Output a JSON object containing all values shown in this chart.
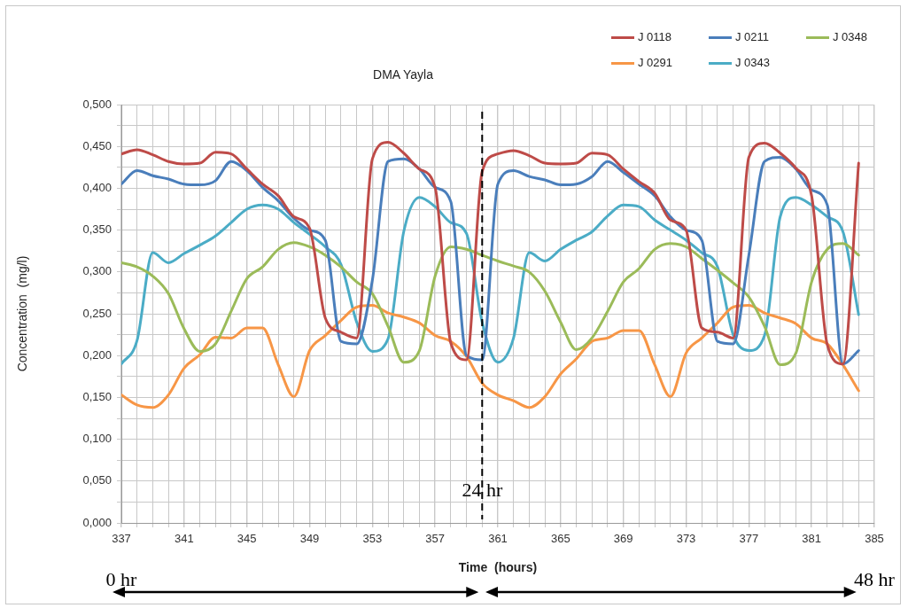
{
  "chart_data": {
    "type": "line",
    "title": "DMA Yayla",
    "xlabel": "Time  (hours)",
    "ylabel": "Concentration  (mg/l)",
    "x": [
      337,
      338,
      339,
      340,
      341,
      342,
      343,
      344,
      345,
      346,
      347,
      348,
      349,
      350,
      351,
      352,
      353,
      354,
      355,
      356,
      357,
      358,
      359,
      360,
      361,
      362,
      363,
      364,
      365,
      366,
      367,
      368,
      369,
      370,
      371,
      372,
      373,
      374,
      375,
      376,
      377,
      378,
      379,
      380,
      381,
      382,
      383,
      384
    ],
    "series": [
      {
        "name": "J 0118",
        "color": "#be4b48",
        "values": [
          0.441,
          0.446,
          0.44,
          0.432,
          0.429,
          0.43,
          0.443,
          0.441,
          0.423,
          0.405,
          0.391,
          0.366,
          0.352,
          0.245,
          0.228,
          0.221,
          0.435,
          0.455,
          0.442,
          0.423,
          0.401,
          0.215,
          0.195,
          0.42,
          0.441,
          0.445,
          0.439,
          0.43,
          0.429,
          0.43,
          0.442,
          0.44,
          0.423,
          0.408,
          0.394,
          0.362,
          0.35,
          0.233,
          0.228,
          0.221,
          0.437,
          0.454,
          0.442,
          0.424,
          0.391,
          0.213,
          0.19,
          0.43
        ]
      },
      {
        "name": "J 0211",
        "color": "#4a7ebb",
        "values": [
          0.405,
          0.421,
          0.415,
          0.411,
          0.405,
          0.404,
          0.409,
          0.432,
          0.421,
          0.401,
          0.385,
          0.364,
          0.35,
          0.338,
          0.217,
          0.214,
          0.29,
          0.432,
          0.435,
          0.423,
          0.401,
          0.384,
          0.2,
          0.195,
          0.405,
          0.421,
          0.414,
          0.41,
          0.404,
          0.405,
          0.414,
          0.432,
          0.419,
          0.405,
          0.391,
          0.366,
          0.35,
          0.338,
          0.217,
          0.214,
          0.32,
          0.432,
          0.437,
          0.423,
          0.398,
          0.38,
          0.19,
          0.206
        ]
      },
      {
        "name": "J 0348",
        "color": "#9bbb59",
        "values": [
          0.311,
          0.306,
          0.295,
          0.274,
          0.232,
          0.205,
          0.214,
          0.253,
          0.292,
          0.306,
          0.327,
          0.335,
          0.33,
          0.32,
          0.306,
          0.288,
          0.274,
          0.235,
          0.192,
          0.206,
          0.295,
          0.33,
          0.327,
          0.32,
          0.313,
          0.307,
          0.3,
          0.277,
          0.24,
          0.207,
          0.221,
          0.253,
          0.288,
          0.304,
          0.327,
          0.334,
          0.33,
          0.316,
          0.302,
          0.287,
          0.27,
          0.235,
          0.189,
          0.203,
          0.288,
          0.327,
          0.334,
          0.32
        ]
      },
      {
        "name": "J 0291",
        "color": "#f79646",
        "values": [
          0.153,
          0.141,
          0.138,
          0.153,
          0.185,
          0.201,
          0.222,
          0.221,
          0.233,
          0.233,
          0.189,
          0.151,
          0.206,
          0.224,
          0.242,
          0.258,
          0.26,
          0.251,
          0.246,
          0.239,
          0.224,
          0.217,
          0.199,
          0.167,
          0.153,
          0.146,
          0.138,
          0.151,
          0.178,
          0.196,
          0.217,
          0.221,
          0.23,
          0.23,
          0.189,
          0.151,
          0.203,
          0.221,
          0.239,
          0.258,
          0.26,
          0.251,
          0.245,
          0.238,
          0.221,
          0.214,
          0.189,
          0.158
        ]
      },
      {
        "name": "J 0343",
        "color": "#4bacc6",
        "values": [
          0.19,
          0.218,
          0.323,
          0.311,
          0.322,
          0.332,
          0.343,
          0.359,
          0.375,
          0.38,
          0.375,
          0.359,
          0.345,
          0.33,
          0.309,
          0.24,
          0.205,
          0.22,
          0.348,
          0.389,
          0.378,
          0.359,
          0.346,
          0.24,
          0.192,
          0.221,
          0.323,
          0.313,
          0.327,
          0.338,
          0.348,
          0.367,
          0.38,
          0.378,
          0.362,
          0.35,
          0.338,
          0.323,
          0.306,
          0.225,
          0.206,
          0.224,
          0.366,
          0.389,
          0.38,
          0.366,
          0.348,
          0.249
        ]
      }
    ],
    "xlim": [
      337,
      385
    ],
    "xticks": [
      337,
      {
        "value": 338,
        "label": null
      },
      {
        "value": 339,
        "label": null
      },
      {
        "value": 340,
        "label": null
      },
      341,
      {
        "value": 342,
        "label": null
      },
      {
        "value": 343,
        "label": null
      },
      {
        "value": 344,
        "label": null
      },
      345,
      {
        "value": 346,
        "label": null
      },
      {
        "value": 347,
        "label": null
      },
      {
        "value": 348,
        "label": null
      },
      349,
      {
        "value": 350,
        "label": null
      },
      {
        "value": 351,
        "label": null
      },
      {
        "value": 352,
        "label": null
      },
      353,
      {
        "value": 354,
        "label": null
      },
      {
        "value": 355,
        "label": null
      },
      {
        "value": 356,
        "label": null
      },
      357,
      {
        "value": 358,
        "label": null
      },
      {
        "value": 359,
        "label": null
      },
      {
        "value": 360,
        "label": null
      },
      361,
      {
        "value": 362,
        "label": null
      },
      {
        "value": 363,
        "label": null
      },
      {
        "value": 364,
        "label": null
      },
      365,
      {
        "value": 366,
        "label": null
      },
      {
        "value": 367,
        "label": null
      },
      {
        "value": 368,
        "label": null
      },
      369,
      {
        "value": 370,
        "label": null
      },
      {
        "value": 371,
        "label": null
      },
      {
        "value": 372,
        "label": null
      },
      373,
      {
        "value": 374,
        "label": null
      },
      {
        "value": 375,
        "label": null
      },
      {
        "value": 376,
        "label": null
      },
      377,
      {
        "value": 378,
        "label": null
      },
      {
        "value": 379,
        "label": null
      },
      {
        "value": 380,
        "label": null
      },
      381,
      {
        "value": 382,
        "label": null
      },
      {
        "value": 383,
        "label": null
      },
      {
        "value": 384,
        "label": null
      },
      385
    ],
    "ylim": [
      0,
      0.5
    ],
    "yticks": [
      {
        "value": 0,
        "label": "0,000"
      },
      {
        "value": 0.025,
        "label": null
      },
      {
        "value": 0.05,
        "label": "0,050"
      },
      {
        "value": 0.075,
        "label": null
      },
      {
        "value": 0.1,
        "label": "0,100"
      },
      {
        "value": 0.125,
        "label": null
      },
      {
        "value": 0.15,
        "label": "0,150"
      },
      {
        "value": 0.175,
        "label": null
      },
      {
        "value": 0.2,
        "label": "0,200"
      },
      {
        "value": 0.225,
        "label": null
      },
      {
        "value": 0.25,
        "label": "0,250"
      },
      {
        "value": 0.275,
        "label": null
      },
      {
        "value": 0.3,
        "label": "0,300"
      },
      {
        "value": 0.325,
        "label": null
      },
      {
        "value": 0.35,
        "label": "0,350"
      },
      {
        "value": 0.375,
        "label": null
      },
      {
        "value": 0.4,
        "label": "0,400"
      },
      {
        "value": 0.425,
        "label": null
      },
      {
        "value": 0.45,
        "label": "0,450"
      },
      {
        "value": 0.475,
        "label": null
      },
      {
        "value": 0.5,
        "label": "0,500"
      }
    ],
    "grid": true,
    "legend": "top right",
    "marker": "none",
    "line_style": "solid",
    "ref_lines": [
      {
        "axis": "x",
        "value": 360,
        "label": "24 hr",
        "color": "#000000",
        "line_style": "dashed"
      }
    ],
    "annotations": [
      "0 hr",
      "48 hr"
    ]
  }
}
